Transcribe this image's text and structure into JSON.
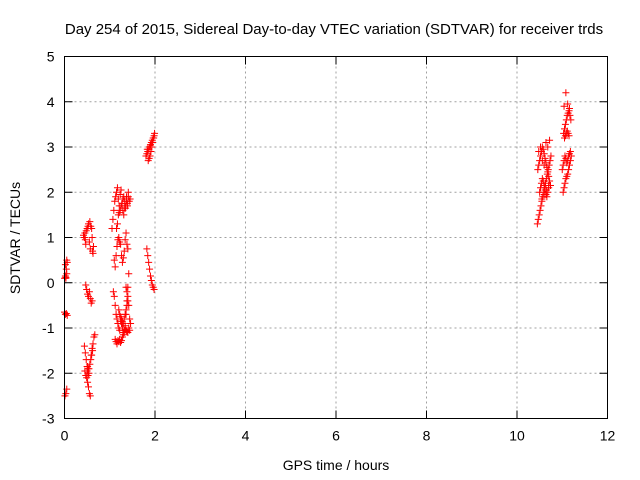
{
  "chart_data": {
    "type": "scatter",
    "title": "Day 254 of 2015, Sidereal Day-to-day VTEC variation (SDTVAR) for receiver trds",
    "xlabel": "GPS time / hours",
    "ylabel": "SDTVAR / TECUs",
    "xlim": [
      0,
      12
    ],
    "ylim": [
      -3,
      5
    ],
    "x_ticks": [
      0,
      2,
      4,
      6,
      8,
      10,
      12
    ],
    "y_ticks": [
      -3,
      -2,
      -1,
      0,
      1,
      2,
      3,
      4,
      5
    ],
    "x_tick_labels": [
      "0",
      "2",
      "4",
      "6",
      "8",
      "10",
      "12"
    ],
    "y_tick_labels": [
      "-3",
      "-2",
      "-1",
      "0",
      "1",
      "2",
      "3",
      "4",
      "5"
    ],
    "grid": true,
    "legend": "none",
    "marker": "plus",
    "color": "#ff0000",
    "series": [
      {
        "x": [
          0.0,
          0.02,
          0.03,
          0.05,
          0.06,
          0.04,
          0.02,
          0.05,
          0.03,
          0.0,
          0.02,
          0.04,
          0.06,
          0.03,
          0.01,
          0.05,
          0.42,
          0.44,
          0.46,
          0.45,
          0.47,
          0.48,
          0.5,
          0.52,
          0.53,
          0.55,
          0.57,
          0.56,
          0.58,
          0.6,
          0.61,
          0.62,
          0.63,
          0.64,
          0.47,
          0.49,
          0.51,
          0.53,
          0.55,
          0.57,
          0.59,
          0.61,
          0.44,
          0.46,
          0.48,
          0.5,
          0.52,
          0.54,
          0.56,
          0.58,
          0.6,
          0.62,
          0.45,
          0.47,
          0.49,
          0.51,
          0.53,
          0.55,
          0.57,
          0.59,
          0.61,
          0.63,
          0.65,
          0.67,
          0.5,
          0.52,
          0.54,
          0.51,
          1.05,
          1.07,
          1.09,
          1.11,
          1.13,
          1.15,
          1.17,
          1.19,
          1.21,
          1.23,
          1.25,
          1.27,
          1.29,
          1.31,
          1.33,
          1.35,
          1.37,
          1.39,
          1.41,
          1.43,
          1.45,
          1.1,
          1.12,
          1.14,
          1.16,
          1.18,
          1.2,
          1.22,
          1.24,
          1.26,
          1.28,
          1.3,
          1.32,
          1.34,
          1.36,
          1.38,
          1.4,
          1.08,
          1.1,
          1.12,
          1.14,
          1.16,
          1.18,
          1.2,
          1.22,
          1.24,
          1.26,
          1.28,
          1.3,
          1.32,
          1.34,
          1.36,
          1.38,
          1.4,
          1.42,
          1.12,
          1.14,
          1.16,
          1.18,
          1.2,
          1.22,
          1.24,
          1.26,
          1.28,
          1.3,
          1.32,
          1.34,
          1.36,
          1.38,
          1.4,
          1.42,
          1.44,
          1.2,
          1.22,
          1.24,
          1.26,
          1.28,
          1.3,
          1.32,
          1.34,
          1.36,
          1.38,
          1.4,
          1.15,
          1.17,
          1.19,
          1.21,
          1.23,
          1.25,
          1.27,
          1.29,
          1.31,
          1.33,
          1.35,
          1.37,
          1.39,
          1.41,
          1.36,
          1.38,
          1.4,
          1.42,
          1.44,
          1.46,
          1.8,
          1.82,
          1.84,
          1.86,
          1.88,
          1.9,
          1.92,
          1.94,
          1.96,
          1.98,
          1.99,
          1.85,
          1.87,
          1.89,
          1.91,
          1.93,
          1.95,
          1.97,
          1.83,
          1.9,
          1.82,
          1.84,
          1.86,
          1.88,
          1.9,
          1.92,
          1.94,
          1.96,
          1.98,
          10.45,
          10.47,
          10.49,
          10.51,
          10.53,
          10.55,
          10.57,
          10.59,
          10.61,
          10.63,
          10.65,
          10.67,
          10.69,
          10.71,
          10.73,
          10.75,
          10.46,
          10.48,
          10.5,
          10.52,
          10.54,
          10.56,
          10.58,
          10.6,
          10.62,
          10.64,
          10.66,
          10.68,
          10.7,
          10.72,
          10.74,
          10.5,
          10.52,
          10.54,
          10.56,
          10.58,
          10.6,
          10.62,
          10.64,
          10.66,
          10.68,
          10.7,
          10.55,
          10.6,
          10.65,
          10.7,
          10.48,
          10.52,
          10.56,
          10.6,
          10.64,
          10.68,
          10.72,
          11.02,
          11.04,
          11.06,
          11.08,
          11.1,
          11.12,
          11.14,
          11.16,
          11.18,
          11.2,
          11.03,
          11.05,
          11.07,
          11.09,
          11.11,
          11.13,
          11.15,
          11.17,
          11.19,
          11.0,
          11.02,
          11.04,
          11.06,
          11.08,
          11.1,
          11.12,
          11.14,
          11.16,
          11.18,
          11.05,
          11.07,
          11.09,
          11.11,
          11.13,
          11.15,
          11.04,
          11.08,
          11.12,
          11.16
        ],
        "y": [
          0.1,
          0.15,
          0.12,
          0.5,
          0.45,
          0.3,
          0.4,
          0.2,
          0.1,
          -0.65,
          -0.7,
          -0.68,
          -0.72,
          -2.45,
          -2.5,
          -2.35,
          1.05,
          1.0,
          0.95,
          1.1,
          0.85,
          1.15,
          1.2,
          1.25,
          1.3,
          0.9,
          0.75,
          1.35,
          1.25,
          1.2,
          1.0,
          0.7,
          0.65,
          0.8,
          -0.05,
          -0.15,
          -0.25,
          -0.3,
          -0.2,
          -0.35,
          -0.45,
          -0.4,
          -1.4,
          -1.55,
          -1.7,
          -1.85,
          -1.9,
          -2.0,
          -1.8,
          -1.7,
          -1.6,
          -1.5,
          -1.95,
          -2.05,
          -2.1,
          -2.2,
          -2.3,
          -2.45,
          -2.5,
          -1.6,
          -1.45,
          -1.35,
          -1.2,
          -1.15,
          -1.95,
          -2.05,
          -1.9,
          -1.85,
          1.2,
          1.4,
          1.6,
          1.8,
          1.9,
          2.0,
          2.1,
          1.85,
          1.7,
          1.95,
          2.05,
          1.75,
          1.6,
          1.5,
          1.8,
          1.65,
          1.9,
          1.7,
          2.0,
          1.8,
          1.85,
          0.5,
          0.35,
          0.6,
          0.8,
          0.95,
          1.0,
          0.9,
          0.85,
          0.6,
          0.45,
          0.55,
          0.7,
          0.95,
          1.1,
          0.85,
          0.75,
          -0.2,
          -0.3,
          -0.5,
          -0.7,
          -0.8,
          -0.9,
          -1.0,
          -1.05,
          -0.85,
          -0.9,
          -1.0,
          -1.1,
          -1.05,
          -0.95,
          -0.7,
          -0.4,
          -0.1,
          0.2,
          -1.25,
          -1.3,
          -1.35,
          -1.28,
          -1.3,
          -1.25,
          -1.32,
          -1.28,
          -1.2,
          -1.15,
          -1.1,
          -1.0,
          -1.05,
          -1.08,
          -1.1,
          -1.0,
          -1.05,
          -0.6,
          -0.7,
          -0.75,
          -0.8,
          -0.85,
          -0.9,
          -0.8,
          -0.7,
          -0.6,
          -0.5,
          -0.4,
          1.2,
          1.3,
          1.5,
          1.55,
          1.6,
          1.7,
          1.75,
          1.85,
          1.9,
          1.65,
          1.7,
          1.8,
          1.75,
          1.9,
          -0.1,
          -0.2,
          -0.3,
          -0.5,
          -0.8,
          -0.9,
          2.8,
          2.85,
          2.9,
          2.95,
          3.0,
          3.05,
          3.1,
          3.15,
          3.2,
          3.25,
          3.3,
          2.7,
          2.75,
          2.8,
          2.9,
          3.0,
          3.1,
          3.2,
          2.95,
          3.05,
          0.75,
          0.6,
          0.45,
          0.3,
          0.15,
          0.05,
          -0.05,
          -0.1,
          -0.15,
          1.3,
          1.4,
          1.5,
          1.6,
          1.7,
          1.8,
          1.9,
          2.0,
          2.1,
          2.2,
          2.3,
          2.4,
          2.5,
          2.6,
          2.7,
          2.8,
          2.5,
          2.6,
          2.7,
          2.8,
          2.9,
          3.0,
          2.95,
          2.85,
          2.75,
          2.65,
          2.55,
          2.45,
          2.35,
          2.25,
          2.15,
          2.0,
          2.1,
          2.2,
          2.3,
          2.25,
          2.15,
          2.05,
          1.95,
          1.9,
          2.0,
          2.1,
          1.85,
          1.95,
          2.05,
          2.15,
          2.9,
          3.0,
          2.7,
          2.6,
          3.1,
          3.0,
          3.15,
          2.0,
          2.1,
          2.2,
          2.3,
          2.35,
          2.4,
          2.5,
          2.6,
          2.7,
          2.8,
          3.3,
          3.4,
          3.5,
          3.6,
          3.7,
          3.75,
          3.8,
          3.7,
          3.6,
          2.5,
          2.6,
          2.7,
          2.8,
          2.75,
          2.65,
          2.7,
          2.8,
          2.85,
          2.9,
          3.2,
          3.25,
          3.3,
          3.35,
          3.3,
          3.25,
          3.9,
          4.2,
          3.95,
          3.85
        ]
      }
    ]
  }
}
